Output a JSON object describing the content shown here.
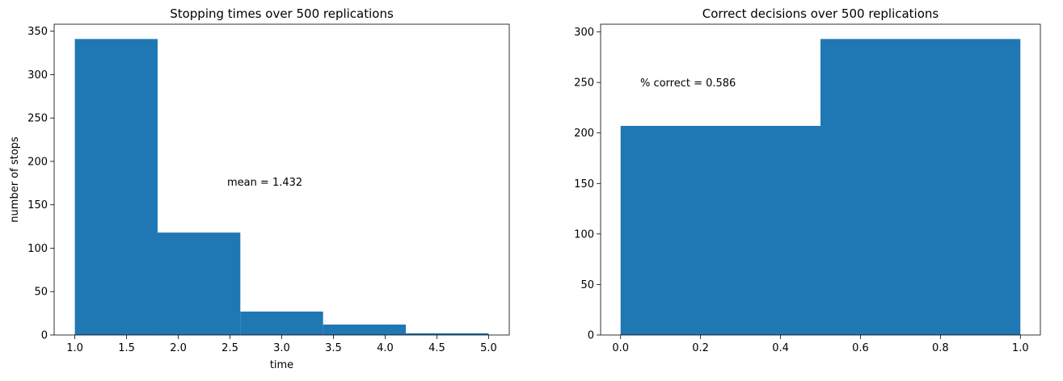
{
  "chart_data": [
    {
      "type": "histogram",
      "title": "Stopping times over 500 replications",
      "xlabel": "time",
      "ylabel": "number of stops",
      "bins": [
        1.0,
        1.8,
        2.6,
        3.4,
        4.2,
        5.0
      ],
      "values": [
        341,
        118,
        27,
        12,
        2
      ],
      "color": "#1f77b4",
      "xlim": [
        0.8,
        5.2
      ],
      "ylim": [
        0,
        358.05
      ],
      "xticks": [
        {
          "value": 1.0,
          "label": "1.0"
        },
        {
          "value": 1.5,
          "label": "1.5"
        },
        {
          "value": 2.0,
          "label": "2.0"
        },
        {
          "value": 2.5,
          "label": "2.5"
        },
        {
          "value": 3.0,
          "label": "3.0"
        },
        {
          "value": 3.5,
          "label": "3.5"
        },
        {
          "value": 4.0,
          "label": "4.0"
        },
        {
          "value": 4.5,
          "label": "4.5"
        },
        {
          "value": 5.0,
          "label": "5.0"
        }
      ],
      "yticks": [
        0,
        50,
        100,
        150,
        200,
        250,
        300,
        350
      ],
      "annotation": "mean = 1.432"
    },
    {
      "type": "histogram",
      "title": "Correct decisions over 500 replications",
      "bins": [
        0.0,
        0.5,
        1.0
      ],
      "values": [
        207,
        293
      ],
      "color": "#1f77b4",
      "xlim": [
        -0.05,
        1.05
      ],
      "ylim": [
        0,
        307.65
      ],
      "xticks": [
        {
          "value": 0.0,
          "label": "0.0"
        },
        {
          "value": 0.2,
          "label": "0.2"
        },
        {
          "value": 0.4,
          "label": "0.4"
        },
        {
          "value": 0.6,
          "label": "0.6"
        },
        {
          "value": 0.8,
          "label": "0.8"
        },
        {
          "value": 1.0,
          "label": "1.0"
        }
      ],
      "yticks": [
        0,
        50,
        100,
        150,
        200,
        250,
        300
      ],
      "annotation": "% correct = 0.586"
    }
  ]
}
